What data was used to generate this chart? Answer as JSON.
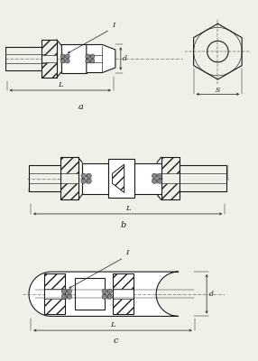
{
  "bg_color": "#f0efe8",
  "line_color": "#1a1a1a",
  "panel_a_label": "a",
  "panel_b_label": "b",
  "panel_c_label": "c",
  "dim_L": "L",
  "dim_d": "d",
  "dim_s": "S",
  "dim_I": "I"
}
